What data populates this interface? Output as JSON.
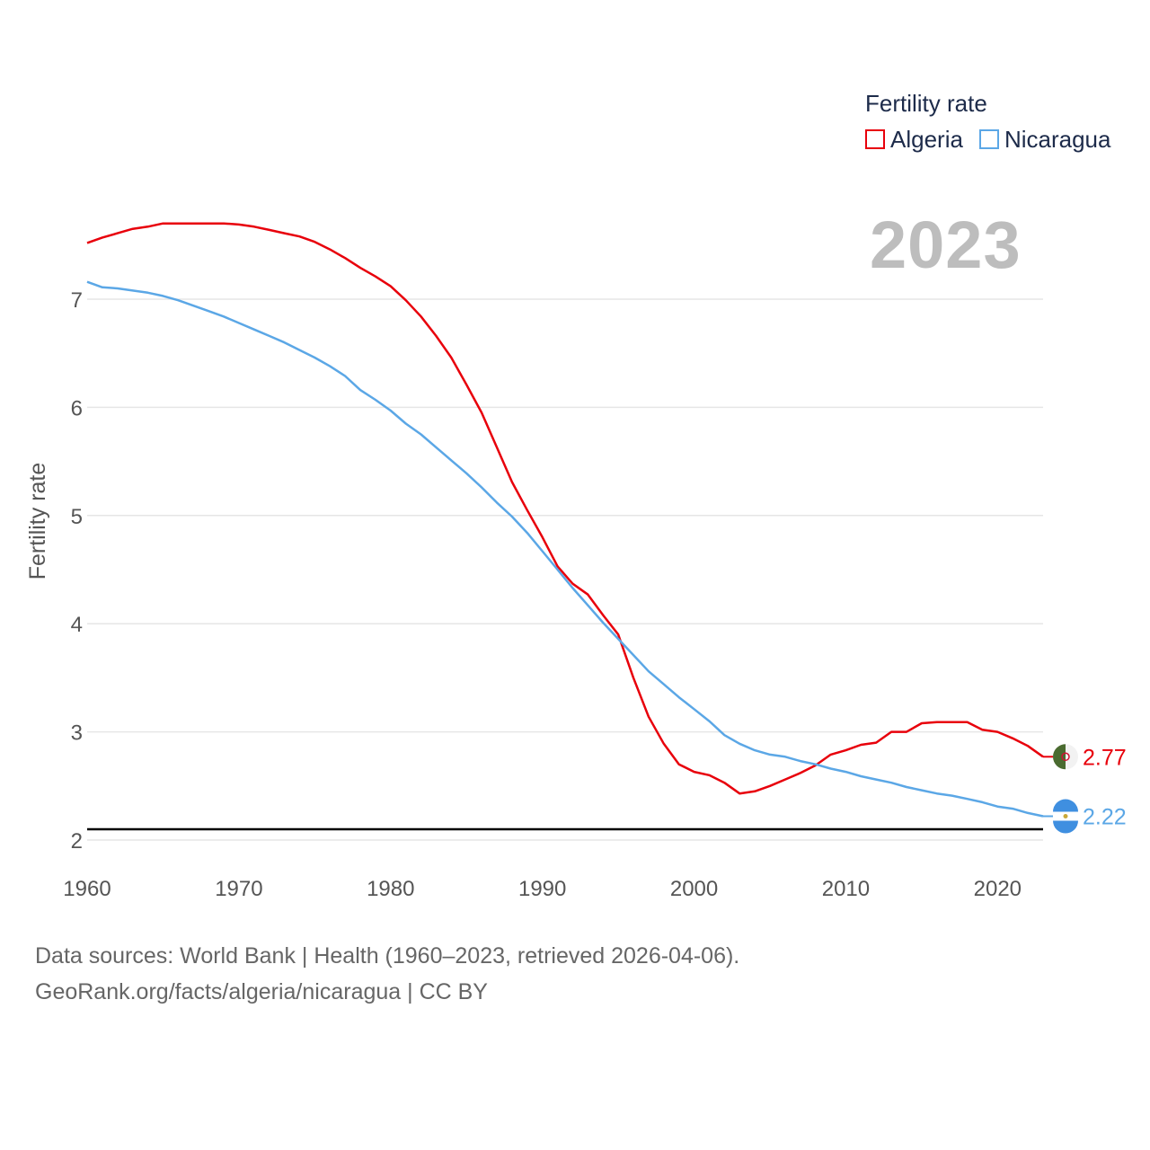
{
  "legend": {
    "title": "Fertility rate",
    "items": [
      {
        "label": "Algeria",
        "color": "#e8000b"
      },
      {
        "label": "Nicaragua",
        "color": "#5ba7e6"
      }
    ]
  },
  "year_label": "2023",
  "footer": {
    "line1": "Data sources: World Bank | Health (1960–2023, retrieved 2026-04-06).",
    "line2": "GeoRank.org/facts/algeria/nicaragua | CC BY"
  },
  "chart_data": {
    "type": "line",
    "title": "Fertility rate",
    "xlabel": "",
    "ylabel": "Fertility rate",
    "xlim": [
      1960,
      2023
    ],
    "ylim": [
      2,
      7.5
    ],
    "x_ticks": [
      1960,
      1970,
      1980,
      1990,
      2000,
      2010,
      2020
    ],
    "y_ticks": [
      2,
      3,
      4,
      5,
      6,
      7
    ],
    "reference_line": 2.1,
    "x": [
      1960,
      1961,
      1962,
      1963,
      1964,
      1965,
      1966,
      1967,
      1968,
      1969,
      1970,
      1971,
      1972,
      1973,
      1974,
      1975,
      1976,
      1977,
      1978,
      1979,
      1980,
      1981,
      1982,
      1983,
      1984,
      1985,
      1986,
      1987,
      1988,
      1989,
      1990,
      1991,
      1992,
      1993,
      1994,
      1995,
      1996,
      1997,
      1998,
      1999,
      2000,
      2001,
      2002,
      2003,
      2004,
      2005,
      2006,
      2007,
      2008,
      2009,
      2010,
      2011,
      2012,
      2013,
      2014,
      2015,
      2016,
      2017,
      2018,
      2019,
      2020,
      2021,
      2022,
      2023
    ],
    "series": [
      {
        "name": "Algeria",
        "color": "#e8000b",
        "end_label": "2.77",
        "values": [
          7.52,
          7.57,
          7.61,
          7.65,
          7.67,
          7.7,
          7.7,
          7.7,
          7.7,
          7.7,
          7.69,
          7.67,
          7.64,
          7.61,
          7.58,
          7.53,
          7.46,
          7.38,
          7.29,
          7.21,
          7.12,
          6.99,
          6.84,
          6.66,
          6.46,
          6.21,
          5.95,
          5.63,
          5.31,
          5.05,
          4.8,
          4.53,
          4.37,
          4.27,
          4.08,
          3.9,
          3.5,
          3.14,
          2.89,
          2.7,
          2.63,
          2.6,
          2.53,
          2.43,
          2.45,
          2.5,
          2.56,
          2.62,
          2.69,
          2.79,
          2.83,
          2.88,
          2.9,
          3.0,
          3.0,
          3.08,
          3.09,
          3.09,
          3.09,
          3.02,
          3.0,
          2.94,
          2.87,
          2.77
        ]
      },
      {
        "name": "Nicaragua",
        "color": "#5ba7e6",
        "end_label": "2.22",
        "values": [
          7.16,
          7.11,
          7.1,
          7.08,
          7.06,
          7.03,
          6.99,
          6.94,
          6.89,
          6.84,
          6.78,
          6.72,
          6.66,
          6.6,
          6.53,
          6.46,
          6.38,
          6.29,
          6.16,
          6.07,
          5.97,
          5.85,
          5.75,
          5.63,
          5.51,
          5.39,
          5.26,
          5.12,
          4.99,
          4.84,
          4.67,
          4.5,
          4.33,
          4.17,
          4.01,
          3.86,
          3.71,
          3.56,
          3.44,
          3.32,
          3.21,
          3.1,
          2.97,
          2.89,
          2.83,
          2.79,
          2.77,
          2.73,
          2.7,
          2.66,
          2.63,
          2.59,
          2.56,
          2.53,
          2.49,
          2.46,
          2.43,
          2.41,
          2.38,
          2.35,
          2.31,
          2.29,
          2.25,
          2.22
        ]
      }
    ]
  }
}
